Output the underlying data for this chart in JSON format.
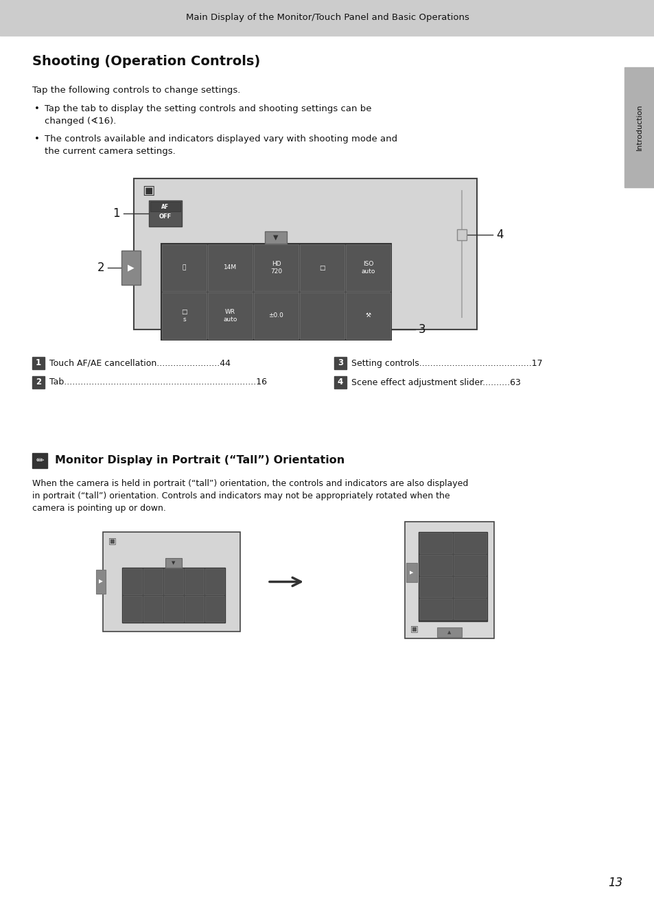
{
  "page_bg": "#ffffff",
  "header_bg": "#cccccc",
  "header_text": "Main Display of the Monitor/Touch Panel and Basic Operations",
  "header_fontsize": 9.5,
  "title": "Shooting (Operation Controls)",
  "title_fontsize": 14,
  "body_text1": "Tap the following controls to change settings.",
  "bullet1_line1": "Tap the tab to display the setting controls and shooting settings can be",
  "bullet1_line2": "changed (∢16).",
  "bullet2_line1": "The controls available and indicators displayed vary with shooting mode and",
  "bullet2_line2": "the current camera settings.",
  "legend_items": [
    {
      "num": "1",
      "text": "Touch AF/AE cancellation",
      "dots": ".......................",
      "page": "44"
    },
    {
      "num": "2",
      "text": "Tab",
      "dots": "......................................................................",
      "page": "16"
    },
    {
      "num": "3",
      "text": "Setting controls",
      "dots": ".........................................",
      "page": "17"
    },
    {
      "num": "4",
      "text": "Scene effect adjustment slider",
      "dots": "..........",
      "page": "63"
    }
  ],
  "section2_title": "Monitor Display in Portrait (“Tall”) Orientation",
  "section2_title_fontsize": 11.5,
  "section2_body1": "When the camera is held in portrait (“tall”) orientation, the controls and indicators are also displayed",
  "section2_body2": "in portrait (“tall”) orientation. Controls and indicators may not be appropriately rotated when the",
  "section2_body3": "camera is pointing up or down.",
  "page_number": "13",
  "sidebar_text": "Introduction",
  "sidebar_bg": "#b0b0b0"
}
